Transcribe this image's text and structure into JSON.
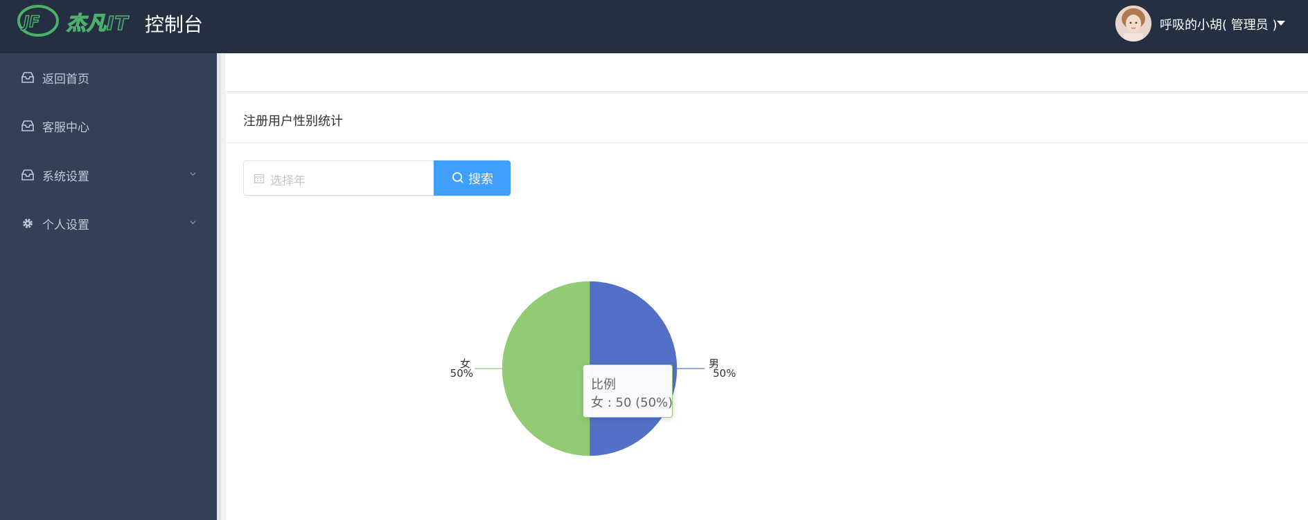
{
  "header": {
    "brand": "杰凡IT",
    "app_title": "控制台",
    "user_name": "呼吸的小胡( 管理员 )",
    "bg_color": "#242f42"
  },
  "sidebar": {
    "bg_color": "#324157",
    "items": [
      {
        "label": "返回首页",
        "icon": "inbox-icon",
        "expandable": false
      },
      {
        "label": "客服中心",
        "icon": "inbox-icon",
        "expandable": false
      },
      {
        "label": "系统设置",
        "icon": "inbox-icon",
        "expandable": true
      },
      {
        "label": "个人设置",
        "icon": "gear-icon",
        "expandable": true
      }
    ]
  },
  "card": {
    "title": "注册用户性别统计"
  },
  "filter": {
    "year_placeholder": "选择年",
    "search_label": "搜索",
    "accent_color": "#409eff"
  },
  "chart_data": {
    "type": "pie",
    "series_name": "比例",
    "slices": [
      {
        "name": "男",
        "value": 50,
        "percent": "50%",
        "color": "#5470c6"
      },
      {
        "name": "女",
        "value": 50,
        "percent": "50%",
        "color": "#91cc75"
      }
    ],
    "tooltip": {
      "title": "比例",
      "text": "女 : 50 (50%)"
    }
  }
}
